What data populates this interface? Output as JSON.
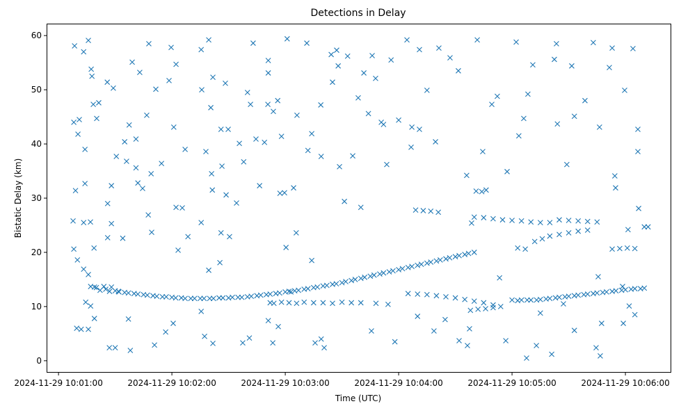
{
  "chart_data": {
    "type": "scatter",
    "title": "Detections in Delay",
    "xlabel": "Time (UTC)",
    "ylabel": "Bistatic Delay (km)",
    "x_units": "seconds after 2024-11-29 10:01:00 UTC",
    "xlim": [
      -6.3,
      323.9
    ],
    "ylim": [
      -2.2,
      62.2
    ],
    "grid": false,
    "marker": "x",
    "color": "#1f77b4",
    "xticks": [
      {
        "value": 0,
        "label": "2024-11-29 10:01:00"
      },
      {
        "value": 60,
        "label": "2024-11-29 10:02:00"
      },
      {
        "value": 120,
        "label": "2024-11-29 10:03:00"
      },
      {
        "value": 180,
        "label": "2024-11-29 10:04:00"
      },
      {
        "value": 240,
        "label": "2024-11-29 10:05:00"
      },
      {
        "value": 300,
        "label": "2024-11-29 10:06:00"
      }
    ],
    "yticks": [
      {
        "value": 0,
        "label": "0"
      },
      {
        "value": 10,
        "label": "10"
      },
      {
        "value": 20,
        "label": "20"
      },
      {
        "value": 30,
        "label": "30"
      },
      {
        "value": 40,
        "label": "40"
      },
      {
        "value": 50,
        "label": "50"
      },
      {
        "value": 60,
        "label": "60"
      }
    ],
    "points": [
      [
        20,
        13.5
      ],
      [
        25,
        13.2
      ],
      [
        30,
        12.9
      ],
      [
        35,
        12.6
      ],
      [
        40,
        12.4
      ],
      [
        45,
        12.2
      ],
      [
        50,
        12.0
      ],
      [
        55,
        11.8
      ],
      [
        60,
        11.7
      ],
      [
        65,
        11.6
      ],
      [
        70,
        11.5
      ],
      [
        75,
        11.5
      ],
      [
        80,
        11.5
      ],
      [
        85,
        11.6
      ],
      [
        90,
        11.6
      ],
      [
        95,
        11.7
      ],
      [
        100,
        11.8
      ],
      [
        105,
        12.0
      ],
      [
        110,
        12.2
      ],
      [
        115,
        12.4
      ],
      [
        120,
        12.7
      ],
      [
        125,
        12.9
      ],
      [
        130,
        13.2
      ],
      [
        135,
        13.5
      ],
      [
        140,
        13.8
      ],
      [
        145,
        14.1
      ],
      [
        150,
        14.4
      ],
      [
        155,
        14.8
      ],
      [
        160,
        15.2
      ],
      [
        165,
        15.6
      ],
      [
        170,
        16.0
      ],
      [
        175,
        16.4
      ],
      [
        180,
        16.8
      ],
      [
        185,
        17.2
      ],
      [
        190,
        17.6
      ],
      [
        195,
        18.0
      ],
      [
        200,
        18.4
      ],
      [
        205,
        18.8
      ],
      [
        210,
        19.2
      ],
      [
        215,
        19.6
      ],
      [
        220,
        20.0
      ],
      [
        22,
        13.0
      ],
      [
        27,
        12.8
      ],
      [
        32,
        12.7
      ],
      [
        37,
        12.5
      ],
      [
        42,
        12.3
      ],
      [
        47,
        12.1
      ],
      [
        52,
        11.9
      ],
      [
        57,
        11.8
      ],
      [
        62,
        11.6
      ],
      [
        67,
        11.5
      ],
      [
        72,
        11.5
      ],
      [
        77,
        11.5
      ],
      [
        82,
        11.5
      ],
      [
        87,
        11.6
      ],
      [
        92,
        11.7
      ],
      [
        97,
        11.7
      ],
      [
        102,
        11.9
      ],
      [
        107,
        12.1
      ],
      [
        112,
        12.3
      ],
      [
        117,
        12.5
      ],
      [
        122,
        12.8
      ],
      [
        127,
        13.0
      ],
      [
        132,
        13.3
      ],
      [
        137,
        13.6
      ],
      [
        142,
        13.9
      ],
      [
        147,
        14.2
      ],
      [
        152,
        14.6
      ],
      [
        157,
        15.0
      ],
      [
        162,
        15.4
      ],
      [
        167,
        15.8
      ],
      [
        172,
        16.2
      ],
      [
        177,
        16.6
      ],
      [
        182,
        17.0
      ],
      [
        187,
        17.4
      ],
      [
        192,
        17.8
      ],
      [
        197,
        18.2
      ],
      [
        202,
        18.6
      ],
      [
        207,
        19.0
      ],
      [
        212,
        19.4
      ],
      [
        217,
        19.8
      ],
      [
        185,
        12.4
      ],
      [
        190,
        12.3
      ],
      [
        195,
        12.2
      ],
      [
        200,
        12.0
      ],
      [
        205,
        11.8
      ],
      [
        210,
        11.6
      ],
      [
        215,
        11.3
      ],
      [
        220,
        11.0
      ],
      [
        225,
        10.7
      ],
      [
        230,
        10.3
      ],
      [
        218,
        9.3
      ],
      [
        222,
        9.5
      ],
      [
        226,
        9.6
      ],
      [
        230,
        9.8
      ],
      [
        234,
        10.0
      ],
      [
        240,
        11.2
      ],
      [
        245,
        11.2
      ],
      [
        250,
        11.2
      ],
      [
        255,
        11.3
      ],
      [
        260,
        11.5
      ],
      [
        265,
        11.7
      ],
      [
        270,
        11.9
      ],
      [
        275,
        12.1
      ],
      [
        280,
        12.3
      ],
      [
        285,
        12.5
      ],
      [
        290,
        12.7
      ],
      [
        295,
        12.9
      ],
      [
        300,
        13.1
      ],
      [
        305,
        13.3
      ],
      [
        310,
        13.4
      ],
      [
        243,
        11.1
      ],
      [
        248,
        11.2
      ],
      [
        253,
        11.2
      ],
      [
        258,
        11.4
      ],
      [
        263,
        11.6
      ],
      [
        268,
        11.8
      ],
      [
        273,
        12.0
      ],
      [
        278,
        12.2
      ],
      [
        283,
        12.4
      ],
      [
        288,
        12.6
      ],
      [
        293,
        12.8
      ],
      [
        298,
        13.0
      ],
      [
        303,
        13.2
      ],
      [
        308,
        13.3
      ],
      [
        220,
        26.5
      ],
      [
        225,
        26.4
      ],
      [
        230,
        26.2
      ],
      [
        235,
        26.0
      ],
      [
        240,
        25.9
      ],
      [
        245,
        25.8
      ],
      [
        250,
        25.6
      ],
      [
        255,
        25.5
      ],
      [
        260,
        25.5
      ],
      [
        265,
        26.0
      ],
      [
        270,
        25.9
      ],
      [
        275,
        25.8
      ],
      [
        280,
        25.7
      ],
      [
        285,
        25.6
      ],
      [
        243,
        20.8
      ],
      [
        247,
        20.6
      ],
      [
        252,
        22.0
      ],
      [
        256,
        22.5
      ],
      [
        260,
        23.0
      ],
      [
        265,
        23.3
      ],
      [
        270,
        23.6
      ],
      [
        275,
        23.9
      ],
      [
        280,
        24.1
      ],
      [
        189,
        27.8
      ],
      [
        193,
        27.7
      ],
      [
        197,
        27.6
      ],
      [
        201,
        27.4
      ],
      [
        221,
        31.3
      ],
      [
        224,
        31.2
      ],
      [
        293,
        20.6
      ],
      [
        297,
        20.7
      ],
      [
        301,
        20.8
      ],
      [
        305,
        20.7
      ],
      [
        310,
        24.7
      ],
      [
        312,
        24.7
      ],
      [
        17,
        13.7
      ],
      [
        19,
        13.6
      ],
      [
        24,
        13.7
      ],
      [
        28,
        13.6
      ],
      [
        112,
        10.7
      ],
      [
        114,
        10.6
      ],
      [
        118,
        10.8
      ],
      [
        122,
        10.7
      ],
      [
        126,
        10.6
      ],
      [
        130,
        10.8
      ],
      [
        135,
        10.7
      ],
      [
        140,
        10.7
      ],
      [
        145,
        10.6
      ],
      [
        150,
        10.8
      ],
      [
        155,
        10.7
      ],
      [
        160,
        10.7
      ],
      [
        168,
        10.6
      ],
      [
        8.5,
        58.1
      ],
      [
        15.8,
        59.1
      ],
      [
        13.3,
        57
      ],
      [
        17.3,
        53.8
      ],
      [
        17.7,
        52.5
      ],
      [
        18.4,
        47.3
      ],
      [
        21.3,
        47.6
      ],
      [
        8.1,
        44
      ],
      [
        11,
        44.5
      ],
      [
        10.3,
        41.8
      ],
      [
        14,
        39
      ],
      [
        20.2,
        44.7
      ],
      [
        9,
        31.4
      ],
      [
        14,
        32.7
      ],
      [
        8.1,
        20.6
      ],
      [
        10,
        18.6
      ],
      [
        7.7,
        25.8
      ],
      [
        13.3,
        25.5
      ],
      [
        16.9,
        25.6
      ],
      [
        18.8,
        20.8
      ],
      [
        13.3,
        16.9
      ],
      [
        15.8,
        15.9
      ],
      [
        14.4,
        10.8
      ],
      [
        9.6,
        6
      ],
      [
        12,
        5.8
      ],
      [
        15.8,
        5.8
      ],
      [
        17,
        10.1
      ],
      [
        19,
        7.8
      ],
      [
        25.8,
        51.4
      ],
      [
        29,
        50.3
      ],
      [
        30.6,
        37.7
      ],
      [
        28,
        32.3
      ],
      [
        26,
        29
      ],
      [
        28,
        25.3
      ],
      [
        26,
        22.7
      ],
      [
        31.7,
        12.8
      ],
      [
        26.9,
        2.4
      ],
      [
        30,
        2.4
      ],
      [
        36,
        36.8
      ],
      [
        37.4,
        43.5
      ],
      [
        35,
        40.4
      ],
      [
        34,
        22.6
      ],
      [
        37,
        7.7
      ],
      [
        39,
        55.1
      ],
      [
        43,
        53.2
      ],
      [
        41,
        40.9
      ],
      [
        41,
        35.6
      ],
      [
        42,
        32.8
      ],
      [
        44.5,
        31.8
      ],
      [
        38,
        1.9
      ],
      [
        47.5,
        26.9
      ],
      [
        49,
        34.5
      ],
      [
        46.7,
        45.3
      ],
      [
        47.8,
        58.5
      ],
      [
        51.5,
        50.1
      ],
      [
        54.5,
        36.4
      ],
      [
        49.3,
        23.7
      ],
      [
        50.8,
        2.9
      ],
      [
        56.7,
        5.3
      ],
      [
        58.5,
        51.7
      ],
      [
        59.6,
        57.8
      ],
      [
        61,
        43.1
      ],
      [
        62.2,
        54.7
      ],
      [
        62.2,
        28.3
      ],
      [
        63.3,
        20.4
      ],
      [
        60.7,
        6.9
      ],
      [
        65.5,
        28.2
      ],
      [
        67,
        39
      ],
      [
        68.5,
        22.9
      ],
      [
        75.5,
        57.4
      ],
      [
        75.8,
        50
      ],
      [
        78,
        38.6
      ],
      [
        80.6,
        46.7
      ],
      [
        81.7,
        52.3
      ],
      [
        79.5,
        59.2
      ],
      [
        81,
        34.5
      ],
      [
        81.4,
        31.5
      ],
      [
        75.5,
        25.5
      ],
      [
        79.5,
        16.7
      ],
      [
        75.5,
        9.1
      ],
      [
        77.3,
        4.5
      ],
      [
        81.7,
        3.2
      ],
      [
        88.3,
        51.2
      ],
      [
        86,
        42.7
      ],
      [
        89.8,
        42.7
      ],
      [
        86.5,
        35.9
      ],
      [
        88.7,
        30.6
      ],
      [
        86,
        23.6
      ],
      [
        90.5,
        22.9
      ],
      [
        85.4,
        18.1
      ],
      [
        94.2,
        29.1
      ],
      [
        98,
        36.7
      ],
      [
        95.7,
        40.1
      ],
      [
        97.5,
        3.3
      ],
      [
        101,
        4.2
      ],
      [
        100,
        49.5
      ],
      [
        103,
        58.6
      ],
      [
        101.6,
        47.3
      ],
      [
        104.5,
        40.9
      ],
      [
        106.4,
        32.3
      ],
      [
        109,
        40.3
      ],
      [
        111,
        55.4
      ],
      [
        111,
        53.1
      ],
      [
        110.8,
        47.3
      ],
      [
        113.7,
        46
      ],
      [
        116,
        48
      ],
      [
        118,
        41.4
      ],
      [
        117.2,
        30.9
      ],
      [
        119.6,
        31
      ],
      [
        111,
        7.4
      ],
      [
        113.4,
        3.3
      ],
      [
        116.3,
        6.3
      ],
      [
        121,
        59.4
      ],
      [
        120.4,
        20.9
      ],
      [
        123,
        12.7
      ],
      [
        124.4,
        31.9
      ],
      [
        126.2,
        45.3
      ],
      [
        125.8,
        23.6
      ],
      [
        131.4,
        58.6
      ],
      [
        132,
        38.8
      ],
      [
        134,
        41.9
      ],
      [
        134,
        18.5
      ],
      [
        135.8,
        3.3
      ],
      [
        139,
        4
      ],
      [
        140.6,
        2.4
      ],
      [
        138.8,
        47.2
      ],
      [
        139,
        37.7
      ],
      [
        144.3,
        56.5
      ],
      [
        145,
        51.4
      ],
      [
        147.2,
        57.3
      ],
      [
        148,
        54.4
      ],
      [
        148.7,
        35.8
      ],
      [
        151.3,
        29.4
      ],
      [
        153,
        56.2
      ],
      [
        155.7,
        37.8
      ],
      [
        158.6,
        48.5
      ],
      [
        160,
        28.3
      ],
      [
        161.6,
        53.1
      ],
      [
        164,
        45.6
      ],
      [
        166,
        56.3
      ],
      [
        165.6,
        5.5
      ],
      [
        167.8,
        52.1
      ],
      [
        170.8,
        44
      ],
      [
        172,
        43.6
      ],
      [
        173.7,
        36.2
      ],
      [
        176,
        55.5
      ],
      [
        174.4,
        10.4
      ],
      [
        178,
        3.5
      ],
      [
        180,
        44.4
      ],
      [
        184.4,
        59.2
      ],
      [
        187,
        43.1
      ],
      [
        186.6,
        39.4
      ],
      [
        191,
        57.4
      ],
      [
        191,
        42.7
      ],
      [
        195,
        49.9
      ],
      [
        199.5,
        40.4
      ],
      [
        201.3,
        57.7
      ],
      [
        207.2,
        55.9
      ],
      [
        211.6,
        53.5
      ],
      [
        216,
        34.2
      ],
      [
        218.6,
        25.4
      ],
      [
        221.6,
        59.2
      ],
      [
        224.5,
        38.6
      ],
      [
        226.3,
        31.5
      ],
      [
        229.3,
        47.3
      ],
      [
        232.2,
        48.8
      ],
      [
        237.4,
        34.9
      ],
      [
        233.4,
        15.3
      ],
      [
        236.7,
        3.7
      ],
      [
        190,
        8.2
      ],
      [
        198.7,
        5.5
      ],
      [
        212,
        3.7
      ],
      [
        216.4,
        2.8
      ],
      [
        217.5,
        5.9
      ],
      [
        204.6,
        7.6
      ],
      [
        242.2,
        58.8
      ],
      [
        243.6,
        41.5
      ],
      [
        246.2,
        44.7
      ],
      [
        248.4,
        49.2
      ],
      [
        251,
        54.6
      ],
      [
        247.7,
        0.5
      ],
      [
        252.9,
        2.8
      ],
      [
        255,
        8.8
      ],
      [
        261,
        1.2
      ],
      [
        262.4,
        55.6
      ],
      [
        263.5,
        58.5
      ],
      [
        264,
        43.7
      ],
      [
        269,
        36.2
      ],
      [
        271.6,
        54.4
      ],
      [
        273,
        45.1
      ],
      [
        278.6,
        48
      ],
      [
        283,
        58.7
      ],
      [
        286.3,
        43.1
      ],
      [
        285.6,
        15.5
      ],
      [
        291.5,
        54.1
      ],
      [
        293,
        57.7
      ],
      [
        294.4,
        34.1
      ],
      [
        294.8,
        31.9
      ],
      [
        298.5,
        13.7
      ],
      [
        298.9,
        6.9
      ],
      [
        299.6,
        49.9
      ],
      [
        301.4,
        24.2
      ],
      [
        302,
        10.1
      ],
      [
        305,
        8.5
      ],
      [
        304,
        57.6
      ],
      [
        306.6,
        42.7
      ],
      [
        306.6,
        38.6
      ],
      [
        307,
        28.1
      ],
      [
        284.5,
        2.4
      ],
      [
        286.7,
        0.9
      ],
      [
        273,
        5.6
      ],
      [
        287.4,
        6.9
      ],
      [
        267.2,
        10.5
      ]
    ]
  }
}
